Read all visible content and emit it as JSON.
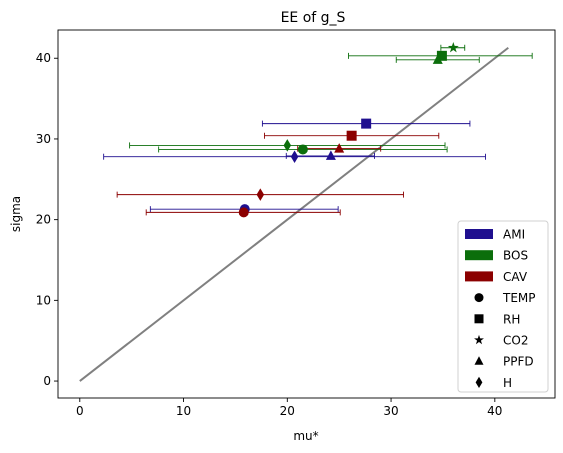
{
  "chart_data": {
    "type": "scatter",
    "title": "EE of g_S",
    "xlabel": "mu*",
    "ylabel": "sigma",
    "xlim": [
      -2.1,
      45.8
    ],
    "ylim": [
      -2.1,
      43.5
    ],
    "xticks": [
      0,
      10,
      20,
      30,
      40
    ],
    "yticks": [
      0,
      10,
      20,
      30,
      40
    ],
    "grid": false,
    "legend_placement": "lower-right",
    "reference_line": {
      "x": [
        0,
        41.3
      ],
      "y": [
        0,
        41.3
      ],
      "color": "#808080"
    },
    "groups": [
      {
        "name": "AMI",
        "color": "#1f0f8f"
      },
      {
        "name": "BOS",
        "color": "#0b6e0b"
      },
      {
        "name": "CAV",
        "color": "#8b0000"
      }
    ],
    "variables": [
      {
        "name": "TEMP",
        "marker": "circle"
      },
      {
        "name": "RH",
        "marker": "square"
      },
      {
        "name": "CO2",
        "marker": "star"
      },
      {
        "name": "PPFD",
        "marker": "triangle"
      },
      {
        "name": "H",
        "marker": "diamond"
      }
    ],
    "points": [
      {
        "group": "AMI",
        "variable": "TEMP",
        "x": 15.9,
        "y": 21.3,
        "xerr": [
          6.8,
          24.9
        ]
      },
      {
        "group": "AMI",
        "variable": "RH",
        "x": 27.6,
        "y": 31.9,
        "xerr": [
          17.6,
          37.6
        ]
      },
      {
        "group": "AMI",
        "variable": "PPFD",
        "x": 24.2,
        "y": 27.9,
        "xerr": [
          19.9,
          28.4
        ]
      },
      {
        "group": "AMI",
        "variable": "H",
        "x": 20.7,
        "y": 27.8,
        "xerr": [
          2.3,
          39.1
        ]
      },
      {
        "group": "BOS",
        "variable": "TEMP",
        "x": 21.5,
        "y": 28.7,
        "xerr": [
          7.6,
          35.4
        ]
      },
      {
        "group": "BOS",
        "variable": "RH",
        "x": 34.9,
        "y": 40.3,
        "xerr": [
          25.9,
          43.6
        ]
      },
      {
        "group": "BOS",
        "variable": "CO2",
        "x": 36.0,
        "y": 41.3,
        "xerr": [
          34.8,
          37.1
        ]
      },
      {
        "group": "BOS",
        "variable": "PPFD",
        "x": 34.5,
        "y": 39.8,
        "xerr": [
          30.5,
          38.5
        ]
      },
      {
        "group": "BOS",
        "variable": "H",
        "x": 20.0,
        "y": 29.2,
        "xerr": [
          4.8,
          35.2
        ]
      },
      {
        "group": "CAV",
        "variable": "TEMP",
        "x": 15.8,
        "y": 20.9,
        "xerr": [
          6.4,
          25.1
        ]
      },
      {
        "group": "CAV",
        "variable": "RH",
        "x": 26.2,
        "y": 30.4,
        "xerr": [
          17.8,
          34.6
        ]
      },
      {
        "group": "CAV",
        "variable": "PPFD",
        "x": 25.0,
        "y": 28.8,
        "xerr": [
          21.0,
          29.0
        ]
      },
      {
        "group": "CAV",
        "variable": "H",
        "x": 17.4,
        "y": 23.1,
        "xerr": [
          3.6,
          31.2
        ]
      }
    ]
  }
}
